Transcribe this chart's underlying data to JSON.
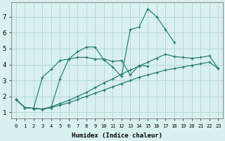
{
  "xlabel": "Humidex (Indice chaleur)",
  "bg_color": "#d8f0f0",
  "grid_color": "#b8d8d8",
  "line_color": "#2a7a70",
  "xlim": [
    -0.5,
    23.5
  ],
  "ylim": [
    0.6,
    7.9
  ],
  "xticks": [
    0,
    1,
    2,
    3,
    4,
    5,
    6,
    7,
    8,
    9,
    10,
    11,
    12,
    13,
    14,
    15,
    16,
    17,
    18,
    19,
    20,
    21,
    22,
    23
  ],
  "yticks": [
    1,
    2,
    3,
    4,
    5,
    6,
    7
  ],
  "series": [
    {
      "x": [
        0,
        1,
        2,
        3,
        4,
        5,
        6,
        7,
        8,
        9,
        10,
        11,
        12,
        13,
        14,
        15,
        16,
        17,
        18,
        19,
        20,
        21,
        22,
        23
      ],
      "y": [
        1.8,
        1.3,
        1.25,
        1.2,
        1.3,
        1.45,
        1.6,
        1.8,
        2.0,
        2.2,
        2.4,
        2.6,
        2.8,
        3.0,
        3.2,
        3.35,
        3.5,
        3.65,
        3.75,
        3.85,
        3.95,
        4.05,
        4.15,
        3.75
      ]
    },
    {
      "x": [
        0,
        1,
        2,
        3,
        4,
        5,
        6,
        7,
        8,
        9,
        10,
        11,
        12,
        13,
        14,
        15,
        16,
        17,
        18,
        19,
        20,
        21,
        22,
        23
      ],
      "y": [
        1.8,
        1.3,
        1.25,
        1.2,
        1.35,
        1.55,
        1.75,
        2.0,
        2.25,
        2.55,
        2.85,
        3.1,
        3.4,
        3.65,
        3.9,
        4.15,
        4.4,
        4.65,
        4.5,
        4.45,
        4.4,
        4.45,
        4.55,
        3.75
      ]
    },
    {
      "x": [
        0,
        1,
        2,
        3,
        4,
        5,
        6,
        7,
        8,
        9,
        10,
        11,
        12,
        13,
        14,
        15
      ],
      "y": [
        1.8,
        1.3,
        1.25,
        3.2,
        3.7,
        4.25,
        4.35,
        4.45,
        4.45,
        4.35,
        4.35,
        4.2,
        4.25,
        3.35,
        3.95,
        3.9
      ]
    },
    {
      "x": [
        2,
        3,
        4,
        5,
        6,
        7,
        8,
        9,
        10,
        11,
        12,
        13,
        14,
        15,
        16,
        17,
        18
      ],
      "y": [
        1.25,
        1.2,
        1.3,
        3.1,
        4.35,
        4.8,
        5.1,
        5.1,
        4.3,
        3.85,
        3.25,
        6.2,
        6.35,
        7.5,
        7.0,
        6.2,
        5.4
      ]
    }
  ]
}
